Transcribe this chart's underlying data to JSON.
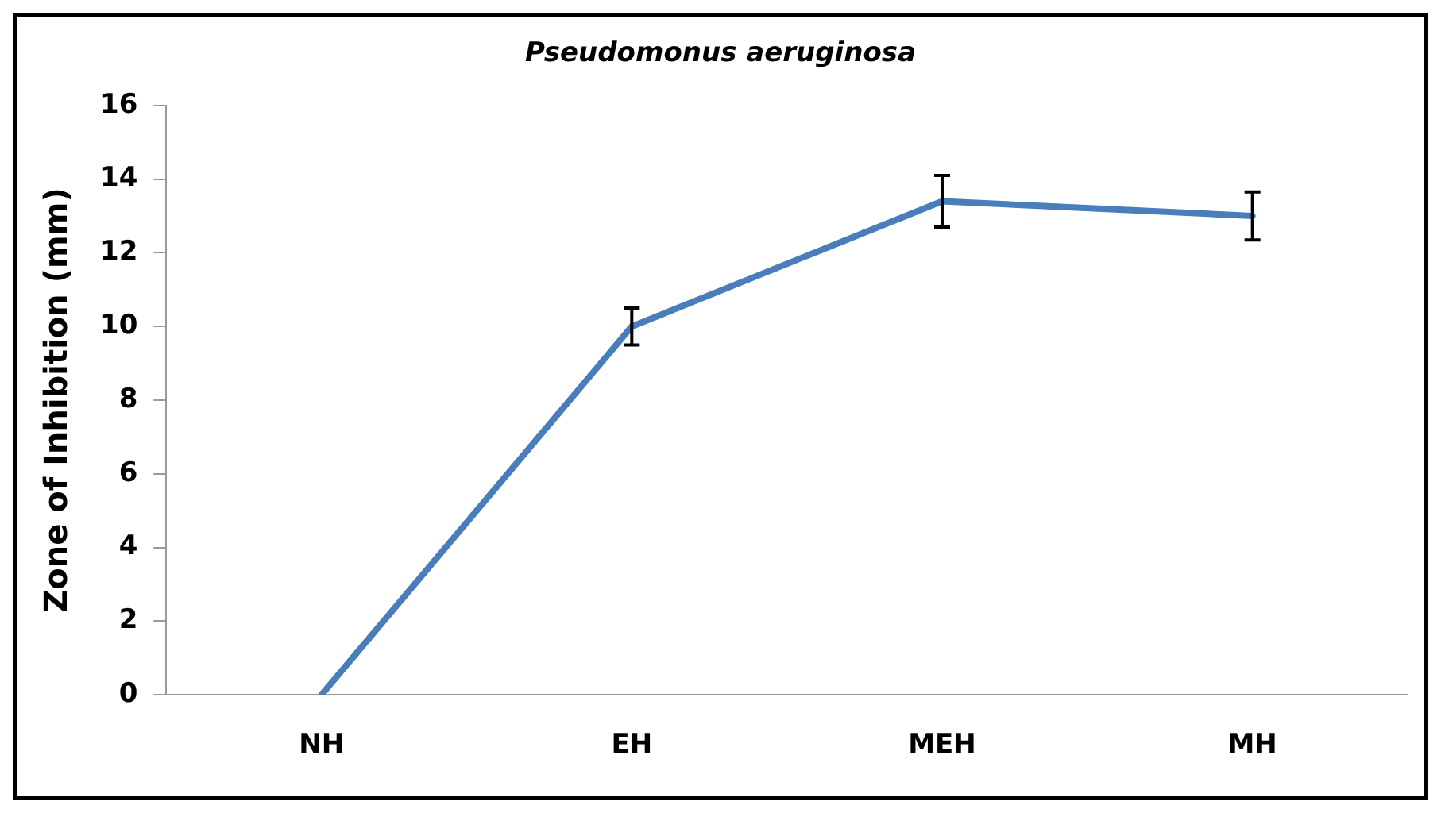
{
  "chart_data": {
    "type": "line",
    "title": "Pseudomonus aeruginosa",
    "ylabel": "Zone of Inhibition (mm)",
    "categories": [
      "NH",
      "EH",
      "MEH",
      "MH"
    ],
    "series": [
      {
        "color": "#4a7ebb",
        "values": [
          0,
          10,
          13.4,
          13
        ],
        "errors": [
          null,
          0.5,
          0.7,
          0.65
        ]
      }
    ],
    "ylim": [
      0,
      16
    ],
    "yticks": [
      0,
      2,
      4,
      6,
      8,
      10,
      12,
      14,
      16
    ],
    "grid": false,
    "legend": false,
    "marker": "none",
    "line_style": "solid"
  }
}
